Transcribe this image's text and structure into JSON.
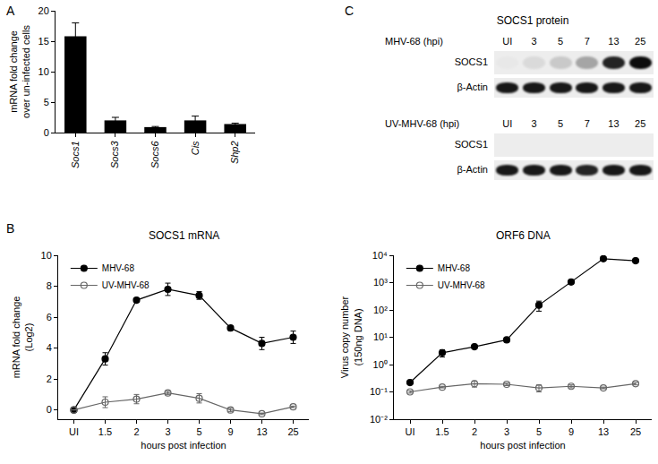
{
  "chart_data": [
    {
      "type": "bar",
      "annotations": [
        "A"
      ],
      "categories": [
        "Socs1",
        "Socs3",
        "Socs6",
        "Cis",
        "Shp2"
      ],
      "values": [
        15.8,
        2.0,
        0.9,
        2.0,
        1.4
      ],
      "errors": [
        2.2,
        0.5,
        0.1,
        0.7,
        0.15
      ],
      "color": "#000000",
      "ylabel": "mRNA fold change\nover un-infected cells",
      "ylim": [
        0,
        20
      ],
      "yticks": [
        0,
        5,
        10,
        15,
        20
      ]
    },
    {
      "type": "line",
      "annotations": [
        "B"
      ],
      "title": "SOCS1 mRNA",
      "categories": [
        "UI",
        "1.5",
        "2",
        "3",
        "5",
        "9",
        "13",
        "25"
      ],
      "xlabel": "hours post infection",
      "ylabel": "mRNA fold change\n(Log2)",
      "ylim": [
        -0.6,
        10
      ],
      "yticks": [
        0,
        2,
        4,
        6,
        8,
        10
      ],
      "legend": "upper left",
      "series": [
        {
          "name": "MHV-68",
          "color": "#000000",
          "marker": "circle",
          "values": [
            0,
            3.3,
            7.1,
            7.8,
            7.4,
            5.3,
            4.3,
            4.7
          ],
          "errors": [
            0,
            0.4,
            0.1,
            0.4,
            0.25,
            0.1,
            0.4,
            0.4
          ]
        },
        {
          "name": "UV-MHV-68",
          "color": "#666666",
          "marker": "circle-open",
          "values": [
            0,
            0.5,
            0.7,
            1.1,
            0.75,
            0,
            -0.25,
            0.2
          ],
          "errors": [
            0,
            0.35,
            0.3,
            0.1,
            0.3,
            0.1,
            0.05,
            0.05
          ]
        }
      ]
    },
    {
      "type": "blot",
      "annotations": [
        "C"
      ],
      "title": "SOCS1 protein",
      "groups": [
        {
          "label": "MHV-68 (hpi)",
          "lanes": [
            "UI",
            "3",
            "5",
            "7",
            "13",
            "25"
          ],
          "bands": [
            {
              "name": "SOCS1",
              "values": [
                0.02,
                0.08,
                0.15,
                0.3,
                0.85,
                0.95
              ]
            },
            {
              "name": "β-Actin",
              "values": [
                0.9,
                0.9,
                0.9,
                0.9,
                0.9,
                0.9
              ]
            }
          ]
        },
        {
          "label": "UV-MHV-68 (hpi)",
          "lanes": [
            "UI",
            "3",
            "5",
            "7",
            "13",
            "25"
          ],
          "bands": [
            {
              "name": "SOCS1",
              "values": [
                0,
                0,
                0,
                0,
                0,
                0
              ]
            },
            {
              "name": "β-Actin",
              "values": [
                0.9,
                0.9,
                0.9,
                0.85,
                0.9,
                0.9
              ]
            }
          ]
        }
      ]
    },
    {
      "type": "line",
      "title": "ORF6 DNA",
      "log": "y",
      "categories": [
        "UI",
        "1.5",
        "2",
        "3",
        "5",
        "9",
        "13",
        "25"
      ],
      "xlabel": "hours post infection",
      "ylabel": "Virus copy number\n(150ng DNA)",
      "ylim": [
        0.01,
        10000
      ],
      "yticks": [
        {
          "value": 0.01,
          "label": "10⁻²"
        },
        {
          "value": 0.1,
          "label": "10⁻¹"
        },
        {
          "value": 1,
          "label": "10⁰"
        },
        {
          "value": 10,
          "label": "10¹"
        },
        {
          "value": 100,
          "label": "10²"
        },
        {
          "value": 1000,
          "label": "10³"
        },
        {
          "value": 10000,
          "label": "10⁴"
        }
      ],
      "legend": "upper left",
      "series": [
        {
          "name": "MHV-68",
          "color": "#000000",
          "marker": "circle",
          "values": [
            0.22,
            2.7,
            4.5,
            8,
            150,
            1050,
            7500,
            6300
          ],
          "errors": [
            0.02,
            0.8,
            0.5,
            0.8,
            60,
            100,
            500,
            400
          ]
        },
        {
          "name": "UV-MHV-68",
          "color": "#666666",
          "marker": "circle-open",
          "values": [
            0.1,
            0.15,
            0.2,
            0.19,
            0.14,
            0.16,
            0.14,
            0.2
          ],
          "errors": [
            0.01,
            0.01,
            0.05,
            0.02,
            0.04,
            0.02,
            0.01,
            0.02
          ]
        }
      ]
    }
  ]
}
